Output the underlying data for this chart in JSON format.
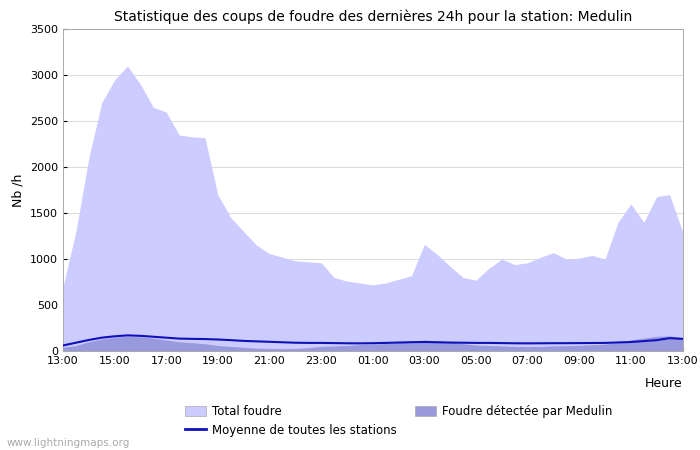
{
  "title": "Statistique des coups de foudre des dernières 24h pour la station: Medulin",
  "ylabel": "Nb /h",
  "xlabel": "Heure",
  "xlim": [
    0,
    48
  ],
  "ylim": [
    0,
    3500
  ],
  "yticks": [
    0,
    500,
    1000,
    1500,
    2000,
    2500,
    3000,
    3500
  ],
  "xtick_labels": [
    "13:00",
    "15:00",
    "17:00",
    "19:00",
    "21:00",
    "23:00",
    "01:00",
    "03:00",
    "05:00",
    "07:00",
    "09:00",
    "11:00",
    "13:00"
  ],
  "xtick_positions": [
    0,
    4,
    8,
    12,
    16,
    20,
    24,
    28,
    32,
    36,
    40,
    44,
    48
  ],
  "watermark": "www.lightningmaps.org",
  "legend": [
    "Total foudre",
    "Moyenne de toutes les stations",
    "Foudre détectée par Medulin"
  ],
  "color_total": "#ccccff",
  "color_medulin": "#9999dd",
  "color_moyenne": "#1111bb",
  "total_foudre": [
    700,
    1300,
    2100,
    2700,
    2950,
    3100,
    2900,
    2650,
    2600,
    2350,
    2330,
    2320,
    1700,
    1450,
    1300,
    1150,
    1060,
    1020,
    980,
    970,
    960,
    800,
    760,
    740,
    720,
    740,
    780,
    820,
    1160,
    1050,
    920,
    800,
    770,
    900,
    1000,
    940,
    960,
    1020,
    1070,
    1000,
    1010,
    1040,
    1000,
    1400,
    1600,
    1400,
    1680,
    1700,
    1300
  ],
  "foudre_medulin": [
    40,
    60,
    100,
    130,
    150,
    160,
    155,
    140,
    120,
    100,
    90,
    80,
    60,
    50,
    40,
    30,
    28,
    25,
    28,
    35,
    50,
    55,
    60,
    70,
    75,
    80,
    90,
    100,
    120,
    110,
    100,
    80,
    65,
    60,
    55,
    50,
    48,
    50,
    55,
    58,
    62,
    68,
    75,
    90,
    120,
    140,
    160,
    165,
    145
  ],
  "moyenne": [
    60,
    90,
    120,
    145,
    160,
    170,
    165,
    155,
    145,
    135,
    132,
    130,
    125,
    118,
    110,
    105,
    100,
    95,
    90,
    88,
    88,
    86,
    84,
    83,
    85,
    88,
    92,
    96,
    98,
    95,
    92,
    90,
    88,
    88,
    86,
    84,
    83,
    84,
    85,
    85,
    86,
    87,
    88,
    93,
    98,
    108,
    118,
    140,
    132
  ]
}
